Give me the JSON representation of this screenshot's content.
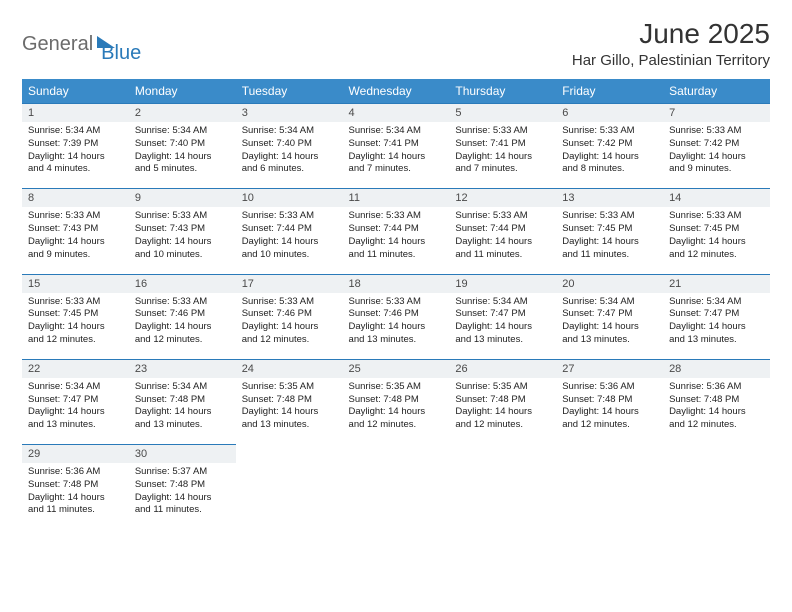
{
  "brand": {
    "part1": "General",
    "part2": "Blue"
  },
  "title": "June 2025",
  "location": "Har Gillo, Palestinian Territory",
  "colors": {
    "header_bg": "#3a8bc9",
    "header_text": "#ffffff",
    "daynum_bg": "#eef1f3",
    "border": "#2a7ab9",
    "brand_gray": "#6b6b6b",
    "brand_blue": "#2a7ab9",
    "page_bg": "#ffffff"
  },
  "weekdays": [
    "Sunday",
    "Monday",
    "Tuesday",
    "Wednesday",
    "Thursday",
    "Friday",
    "Saturday"
  ],
  "weeks": [
    [
      {
        "n": "1",
        "sr": "5:34 AM",
        "ss": "7:39 PM",
        "dh": "14",
        "dm": "4"
      },
      {
        "n": "2",
        "sr": "5:34 AM",
        "ss": "7:40 PM",
        "dh": "14",
        "dm": "5"
      },
      {
        "n": "3",
        "sr": "5:34 AM",
        "ss": "7:40 PM",
        "dh": "14",
        "dm": "6"
      },
      {
        "n": "4",
        "sr": "5:34 AM",
        "ss": "7:41 PM",
        "dh": "14",
        "dm": "7"
      },
      {
        "n": "5",
        "sr": "5:33 AM",
        "ss": "7:41 PM",
        "dh": "14",
        "dm": "7"
      },
      {
        "n": "6",
        "sr": "5:33 AM",
        "ss": "7:42 PM",
        "dh": "14",
        "dm": "8"
      },
      {
        "n": "7",
        "sr": "5:33 AM",
        "ss": "7:42 PM",
        "dh": "14",
        "dm": "9"
      }
    ],
    [
      {
        "n": "8",
        "sr": "5:33 AM",
        "ss": "7:43 PM",
        "dh": "14",
        "dm": "9"
      },
      {
        "n": "9",
        "sr": "5:33 AM",
        "ss": "7:43 PM",
        "dh": "14",
        "dm": "10"
      },
      {
        "n": "10",
        "sr": "5:33 AM",
        "ss": "7:44 PM",
        "dh": "14",
        "dm": "10"
      },
      {
        "n": "11",
        "sr": "5:33 AM",
        "ss": "7:44 PM",
        "dh": "14",
        "dm": "11"
      },
      {
        "n": "12",
        "sr": "5:33 AM",
        "ss": "7:44 PM",
        "dh": "14",
        "dm": "11"
      },
      {
        "n": "13",
        "sr": "5:33 AM",
        "ss": "7:45 PM",
        "dh": "14",
        "dm": "11"
      },
      {
        "n": "14",
        "sr": "5:33 AM",
        "ss": "7:45 PM",
        "dh": "14",
        "dm": "12"
      }
    ],
    [
      {
        "n": "15",
        "sr": "5:33 AM",
        "ss": "7:45 PM",
        "dh": "14",
        "dm": "12"
      },
      {
        "n": "16",
        "sr": "5:33 AM",
        "ss": "7:46 PM",
        "dh": "14",
        "dm": "12"
      },
      {
        "n": "17",
        "sr": "5:33 AM",
        "ss": "7:46 PM",
        "dh": "14",
        "dm": "12"
      },
      {
        "n": "18",
        "sr": "5:33 AM",
        "ss": "7:46 PM",
        "dh": "14",
        "dm": "13"
      },
      {
        "n": "19",
        "sr": "5:34 AM",
        "ss": "7:47 PM",
        "dh": "14",
        "dm": "13"
      },
      {
        "n": "20",
        "sr": "5:34 AM",
        "ss": "7:47 PM",
        "dh": "14",
        "dm": "13"
      },
      {
        "n": "21",
        "sr": "5:34 AM",
        "ss": "7:47 PM",
        "dh": "14",
        "dm": "13"
      }
    ],
    [
      {
        "n": "22",
        "sr": "5:34 AM",
        "ss": "7:47 PM",
        "dh": "14",
        "dm": "13"
      },
      {
        "n": "23",
        "sr": "5:34 AM",
        "ss": "7:48 PM",
        "dh": "14",
        "dm": "13"
      },
      {
        "n": "24",
        "sr": "5:35 AM",
        "ss": "7:48 PM",
        "dh": "14",
        "dm": "13"
      },
      {
        "n": "25",
        "sr": "5:35 AM",
        "ss": "7:48 PM",
        "dh": "14",
        "dm": "12"
      },
      {
        "n": "26",
        "sr": "5:35 AM",
        "ss": "7:48 PM",
        "dh": "14",
        "dm": "12"
      },
      {
        "n": "27",
        "sr": "5:36 AM",
        "ss": "7:48 PM",
        "dh": "14",
        "dm": "12"
      },
      {
        "n": "28",
        "sr": "5:36 AM",
        "ss": "7:48 PM",
        "dh": "14",
        "dm": "12"
      }
    ],
    [
      {
        "n": "29",
        "sr": "5:36 AM",
        "ss": "7:48 PM",
        "dh": "14",
        "dm": "11"
      },
      {
        "n": "30",
        "sr": "5:37 AM",
        "ss": "7:48 PM",
        "dh": "14",
        "dm": "11"
      },
      null,
      null,
      null,
      null,
      null
    ]
  ]
}
